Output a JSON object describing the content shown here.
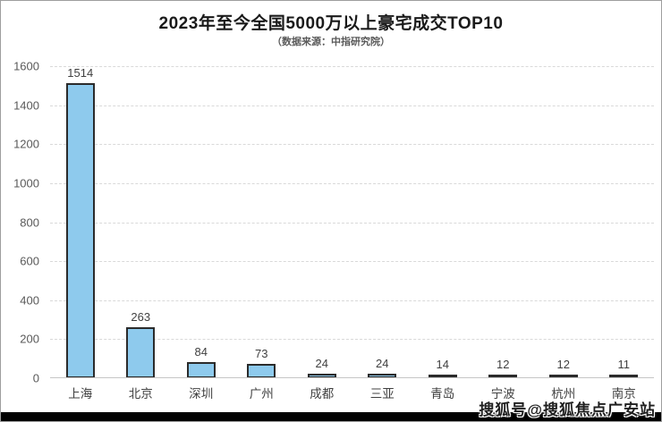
{
  "header": {
    "title": "2023年至今全国5000万以上豪宅成交TOP10",
    "subtitle": "（数据来源：中指研究院）"
  },
  "chart_data": {
    "type": "bar",
    "title": "2023年至今全国5000万以上豪宅成交TOP10",
    "subtitle": "（数据来源：中指研究院）",
    "categories": [
      "上海",
      "北京",
      "深圳",
      "广州",
      "成都",
      "三亚",
      "青岛",
      "宁波",
      "杭州",
      "南京"
    ],
    "values": [
      1514,
      263,
      84,
      73,
      24,
      24,
      14,
      12,
      12,
      11
    ],
    "xlabel": "",
    "ylabel": "",
    "ylim": [
      0,
      1600
    ],
    "ytick_step": 200,
    "grid": "horizontal-dashed",
    "legend": "none",
    "data_labels": true,
    "colors": {
      "bar_fill": "#8ECAED",
      "bar_border": "#2b2b2b",
      "gridline": "#d9d9d9",
      "axis_text": "#595959",
      "label_text": "#404040"
    }
  },
  "watermark": {
    "text": "搜狐号@搜狐焦点广安站"
  }
}
